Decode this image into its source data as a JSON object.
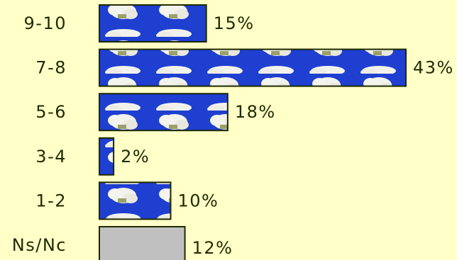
{
  "chart_data": {
    "type": "bar",
    "orientation": "horizontal",
    "categories": [
      "9-10",
      "7-8",
      "5-6",
      "3-4",
      "1-2",
      "Ns/Nc"
    ],
    "values": [
      15,
      43,
      18,
      2,
      10,
      12
    ],
    "value_labels": [
      "15%",
      "43%",
      "18%",
      "2%",
      "10%",
      "12%"
    ],
    "xlim": [
      0,
      43
    ],
    "grid": false,
    "legend": "none",
    "colors": {
      "background": "#ffffc8",
      "bar_fill": "#1e3fd0",
      "bar_fill_na": "#c0c0c0",
      "bar_border": "#1f2a00",
      "cloud": "#f2f2ec",
      "text": "#1f2a00"
    },
    "bar_pattern": "sky-with-clouds",
    "na_category": "Ns/Nc"
  }
}
